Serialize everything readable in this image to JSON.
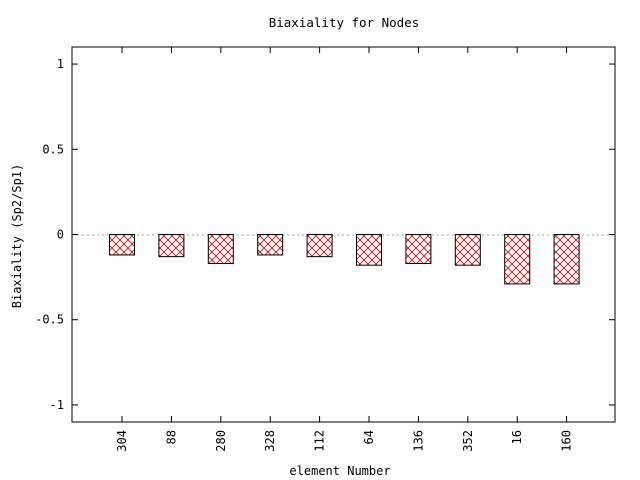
{
  "chart_data": {
    "type": "bar",
    "title": "Biaxiality for Nodes",
    "xlabel": "element Number",
    "ylabel": "Biaxiality (Sp2/Sp1)",
    "categories": [
      "304",
      "88",
      "280",
      "328",
      "112",
      "64",
      "136",
      "352",
      "16",
      "160"
    ],
    "values": [
      -0.12,
      -0.13,
      -0.17,
      -0.12,
      -0.13,
      -0.18,
      -0.17,
      -0.18,
      -0.29,
      -0.29
    ],
    "ylim": [
      -1.1,
      1.1
    ],
    "yticks": [
      "1",
      "0.5",
      "0",
      "-0.5",
      "-1"
    ],
    "ytick_values": [
      1,
      0.5,
      0,
      -0.5,
      -1
    ],
    "zero_line": "dotted",
    "grid": false,
    "legend": "none",
    "bar_fill": "crosshatch",
    "colors": {
      "hatch": "#e00000",
      "bar_outline": "#000000",
      "axis": "#000000",
      "zero_line": "#a0a0a0"
    }
  }
}
